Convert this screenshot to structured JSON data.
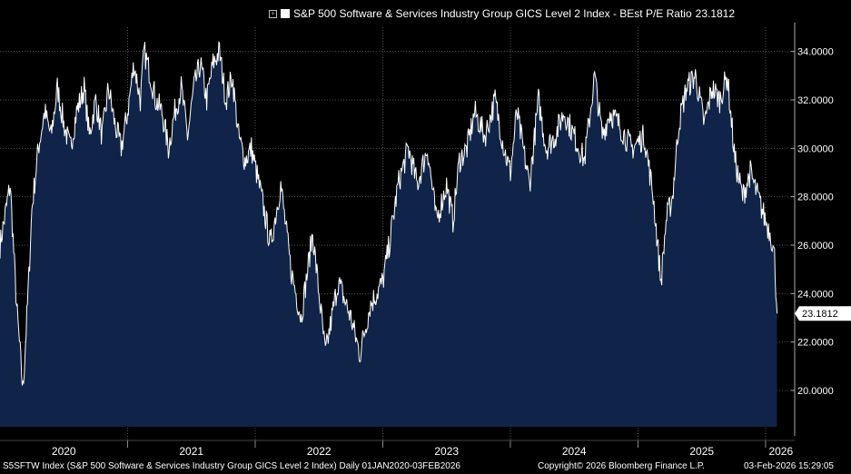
{
  "legend": {
    "label": "S&P 500 Software & Services Industry Group GICS Level 2 Index - BEst P/E Ratio",
    "last_value": "23.1812"
  },
  "footer": {
    "description": "S5SFTW Index (S&P 500 Software & Services Industry Group GICS Level 2 Index) Daily 01JAN2020-03FEB2026",
    "copyright": "Copyright© 2026 Bloomberg Finance L.P.",
    "timestamp": "03-Feb-2026 15:29:05"
  },
  "colors": {
    "background": "#000000",
    "fill": "#0f2448",
    "line": "#ffffff",
    "grid": "#555555"
  },
  "chart_data": {
    "type": "area",
    "title": "S&P 500 Software & Services Industry Group GICS Level 2 Index - BEst P/E Ratio 23.1812",
    "series_name": "BEst P/E Ratio",
    "ylim": [
      18.5,
      35.0
    ],
    "yticks": [
      "34.0000",
      "32.0000",
      "30.0000",
      "28.0000",
      "26.0000",
      "24.0000",
      "22.0000",
      "20.0000"
    ],
    "xlim": [
      2020.0,
      2026.1
    ],
    "x_labels": [
      "2020",
      "2021",
      "2022",
      "2023",
      "2024",
      "2025",
      "2026"
    ],
    "last_label": "23.1812",
    "x": [
      2020.0,
      2020.08,
      2020.13,
      2020.18,
      2020.2,
      2020.22,
      2020.25,
      2020.3,
      2020.35,
      2020.4,
      2020.45,
      2020.5,
      2020.55,
      2020.6,
      2020.66,
      2020.7,
      2020.75,
      2020.8,
      2020.85,
      2020.9,
      2020.95,
      2021.0,
      2021.05,
      2021.1,
      2021.13,
      2021.18,
      2021.22,
      2021.27,
      2021.32,
      2021.37,
      2021.42,
      2021.47,
      2021.52,
      2021.57,
      2021.62,
      2021.67,
      2021.72,
      2021.77,
      2021.82,
      2021.87,
      2021.92,
      2021.97,
      2022.05,
      2022.12,
      2022.2,
      2022.28,
      2022.36,
      2022.45,
      2022.55,
      2022.65,
      2022.75,
      2022.82,
      2022.9,
      2023.0,
      2023.05,
      2023.12,
      2023.2,
      2023.27,
      2023.35,
      2023.42,
      2023.5,
      2023.55,
      2023.6,
      2023.66,
      2023.72,
      2023.8,
      2023.88,
      2023.95,
      2024.0,
      2024.05,
      2024.1,
      2024.15,
      2024.22,
      2024.28,
      2024.35,
      2024.42,
      2024.5,
      2024.58,
      2024.66,
      2024.72,
      2024.78,
      2024.85,
      2024.95,
      2025.05,
      2025.12,
      2025.18,
      2025.22,
      2025.27,
      2025.32,
      2025.38,
      2025.45,
      2025.52,
      2025.58,
      2025.64,
      2025.7,
      2025.76,
      2025.82,
      2025.88,
      2025.94,
      2026.0,
      2026.04,
      2026.07,
      2026.09
    ],
    "values": [
      26.0,
      28.5,
      23.5,
      20.0,
      22.0,
      24.0,
      27.5,
      30.0,
      31.5,
      30.5,
      32.5,
      31.0,
      30.0,
      31.5,
      32.5,
      30.5,
      32.0,
      30.5,
      32.5,
      31.0,
      30.0,
      31.5,
      33.5,
      32.0,
      34.0,
      33.0,
      32.0,
      31.5,
      30.0,
      31.5,
      32.5,
      30.5,
      32.5,
      33.5,
      32.0,
      33.5,
      34.0,
      32.0,
      33.0,
      30.5,
      29.5,
      30.0,
      28.0,
      26.0,
      28.5,
      25.0,
      23.0,
      26.5,
      21.5,
      24.5,
      23.0,
      21.5,
      23.5,
      24.5,
      26.0,
      28.5,
      30.0,
      28.5,
      30.0,
      27.0,
      28.5,
      27.0,
      29.5,
      30.0,
      31.5,
      30.5,
      32.0,
      30.0,
      29.0,
      31.5,
      30.0,
      28.5,
      32.0,
      30.0,
      30.5,
      31.5,
      30.5,
      29.5,
      33.0,
      30.5,
      31.5,
      31.0,
      30.0,
      30.5,
      28.0,
      24.5,
      27.0,
      28.0,
      31.0,
      32.5,
      33.0,
      31.0,
      32.5,
      32.0,
      33.0,
      29.5,
      28.0,
      29.0,
      28.0,
      27.0,
      26.5,
      25.5,
      23.18
    ]
  }
}
